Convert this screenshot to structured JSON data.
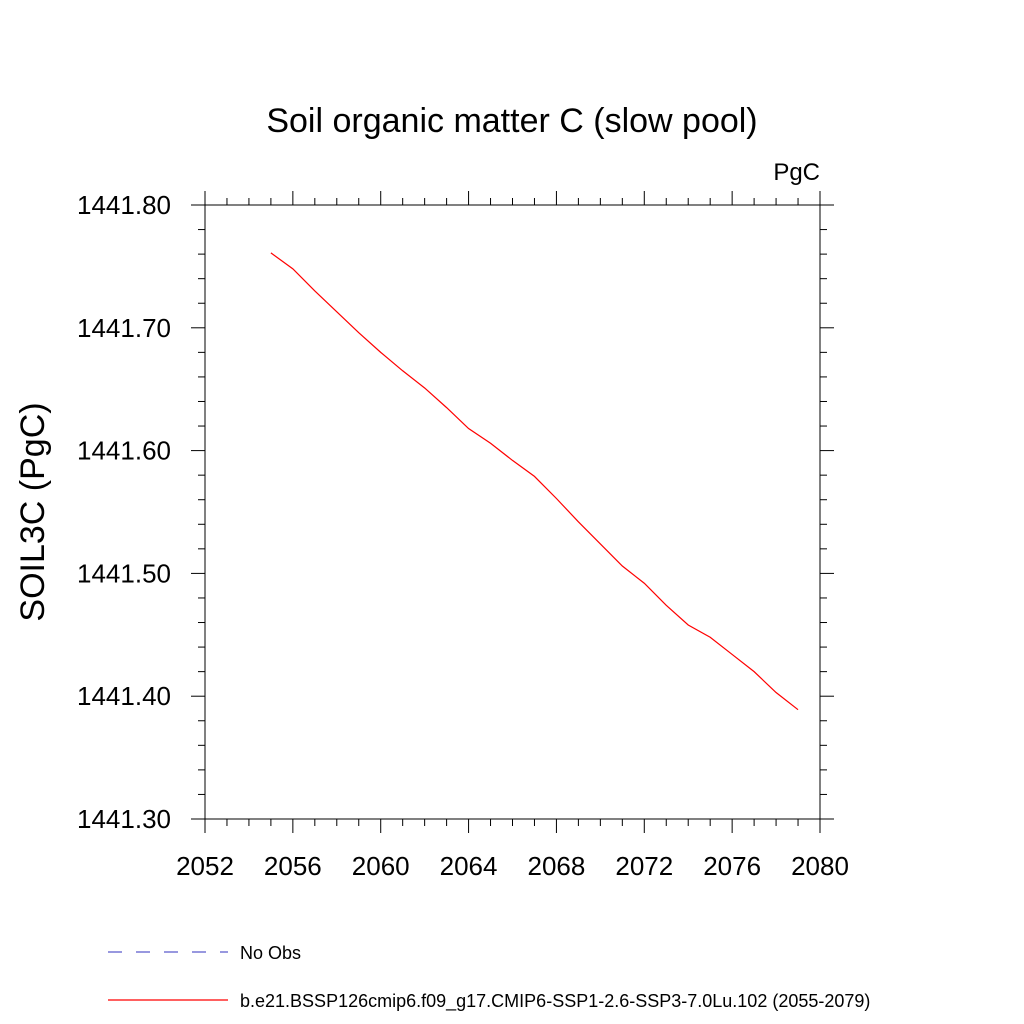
{
  "chart_data": {
    "type": "line",
    "title": "Soil organic matter C (slow pool)",
    "units_label": "PgC",
    "ylabel": "SOIL3C  (PgC)",
    "xlabel": "",
    "xlim": [
      2052,
      2080
    ],
    "ylim": [
      1441.3,
      1441.8
    ],
    "x_ticks": [
      "2052",
      "2056",
      "2060",
      "2064",
      "2068",
      "2072",
      "2076",
      "2080"
    ],
    "y_ticks": [
      "1441.30",
      "1441.40",
      "1441.50",
      "1441.60",
      "1441.70",
      "1441.80"
    ],
    "grid": false,
    "series": [
      {
        "name": "b.e21.BSSP126cmip6.f09_g17.CMIP6-SSP1-2.6-SSP3-7.0Lu.102 (2055-2079)",
        "color": "#ff0000",
        "dash": "solid",
        "x": [
          2055,
          2056,
          2057,
          2058,
          2059,
          2060,
          2061,
          2062,
          2063,
          2064,
          2065,
          2066,
          2067,
          2068,
          2069,
          2070,
          2071,
          2072,
          2073,
          2074,
          2075,
          2076,
          2077,
          2078,
          2079
        ],
        "y": [
          1441.761,
          1441.748,
          1441.73,
          1441.713,
          1441.696,
          1441.68,
          1441.665,
          1441.651,
          1441.635,
          1441.618,
          1441.606,
          1441.592,
          1441.579,
          1441.561,
          1441.542,
          1441.524,
          1441.506,
          1441.492,
          1441.474,
          1441.458,
          1441.448,
          1441.434,
          1441.42,
          1441.403,
          1441.389
        ]
      }
    ],
    "legend": {
      "placement": "bottom",
      "entries": [
        {
          "label": "No Obs",
          "color": "#5a5acc",
          "dash": "dashed"
        },
        {
          "label": "b.e21.BSSP126cmip6.f09_g17.CMIP6-SSP1-2.6-SSP3-7.0Lu.102 (2055-2079)",
          "color": "#ff0000",
          "dash": "solid"
        }
      ]
    }
  }
}
